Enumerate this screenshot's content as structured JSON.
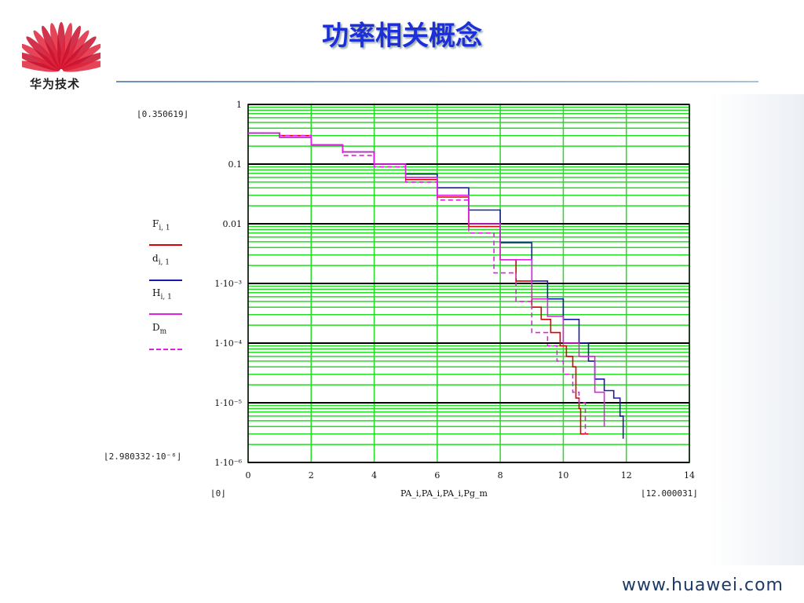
{
  "title": "功率相关概念",
  "logo_text": "华为技术",
  "footer": "www.huawei.com",
  "colors": {
    "title": "#1d2fd8",
    "plot_background": "#ffffff",
    "grid_minor": "#22dd22",
    "grid_major": "#000000"
  },
  "bounds": {
    "y_max": "0.350619",
    "y_min": "2.980332·10⁻⁶",
    "x_min": "0",
    "x_max": "12.000031"
  },
  "legend": [
    {
      "base": "F",
      "sub": "i, 1",
      "color": "#dd0000",
      "dash": false
    },
    {
      "base": "d",
      "sub": "i, 1",
      "color": "#1a1aaa",
      "dash": false
    },
    {
      "base": "H",
      "sub": "i, 1",
      "color": "#e020e0",
      "dash": false
    },
    {
      "base": "D",
      "sub": "m",
      "color": "#e020e0",
      "dash": true
    }
  ],
  "x_axis_label": "PA_i,PA_i,PA_i,Pg_m",
  "chart_data": {
    "type": "line",
    "xlim": [
      0,
      14
    ],
    "ylim": [
      1e-06,
      1
    ],
    "yscale": "log",
    "grid": true,
    "xticks": [
      "0",
      "2",
      "4",
      "6",
      "8",
      "10",
      "12",
      "14"
    ],
    "yticks": [
      "1",
      "0.1",
      "0.01",
      "1·10⁻³",
      "1·10⁻⁴",
      "1·10⁻⁵",
      "1·10⁻⁶"
    ],
    "legend_position": "left",
    "series": [
      {
        "name": "F",
        "color": "#dd0000",
        "dash": false,
        "x": [
          0,
          1,
          2,
          3,
          4,
          5,
          6,
          7,
          8,
          8.5,
          9,
          9.3,
          9.6,
          9.9,
          10.1,
          10.3,
          10.4,
          10.5,
          10.55,
          10.8
        ],
        "y": [
          0.33,
          0.3,
          0.21,
          0.16,
          0.1,
          0.055,
          0.028,
          0.009,
          0.0025,
          0.0011,
          0.0004,
          0.00025,
          0.00015,
          9e-05,
          6e-05,
          4e-05,
          1.2e-05,
          8e-06,
          3e-06,
          3e-06
        ]
      },
      {
        "name": "d",
        "color": "#1a1aaa",
        "dash": false,
        "x": [
          0,
          1,
          2,
          3,
          4,
          5,
          6,
          7,
          8,
          9,
          9.5,
          10,
          10.5,
          10.8,
          11,
          11.3,
          11.6,
          11.8,
          11.9
        ],
        "y": [
          0.33,
          0.28,
          0.21,
          0.16,
          0.1,
          0.068,
          0.04,
          0.017,
          0.0048,
          0.0011,
          0.00055,
          0.00025,
          0.0001,
          5e-05,
          2.5e-05,
          1.6e-05,
          1.2e-05,
          6e-06,
          2.5e-06
        ]
      },
      {
        "name": "H",
        "color": "#e020e0",
        "dash": false,
        "x": [
          0,
          1,
          2,
          3,
          4,
          5,
          6,
          7,
          8,
          9,
          9.5,
          10,
          10.5,
          11,
          11.3
        ],
        "y": [
          0.33,
          0.28,
          0.21,
          0.16,
          0.1,
          0.06,
          0.03,
          0.01,
          0.0025,
          0.00055,
          0.00028,
          0.0001,
          6e-05,
          1.5e-05,
          4e-06
        ]
      },
      {
        "name": "D",
        "color": "#e020e0",
        "dash": true,
        "x": [
          0,
          1,
          2,
          3,
          4,
          5,
          6,
          7,
          7.8,
          8.5,
          9,
          9.5,
          9.8,
          10,
          10.3,
          10.5,
          10.7
        ],
        "y": [
          0.33,
          0.3,
          0.21,
          0.14,
          0.09,
          0.05,
          0.025,
          0.007,
          0.0015,
          0.0005,
          0.00015,
          9e-05,
          5e-05,
          3e-05,
          1.5e-05,
          1e-05,
          3e-06
        ]
      }
    ]
  }
}
